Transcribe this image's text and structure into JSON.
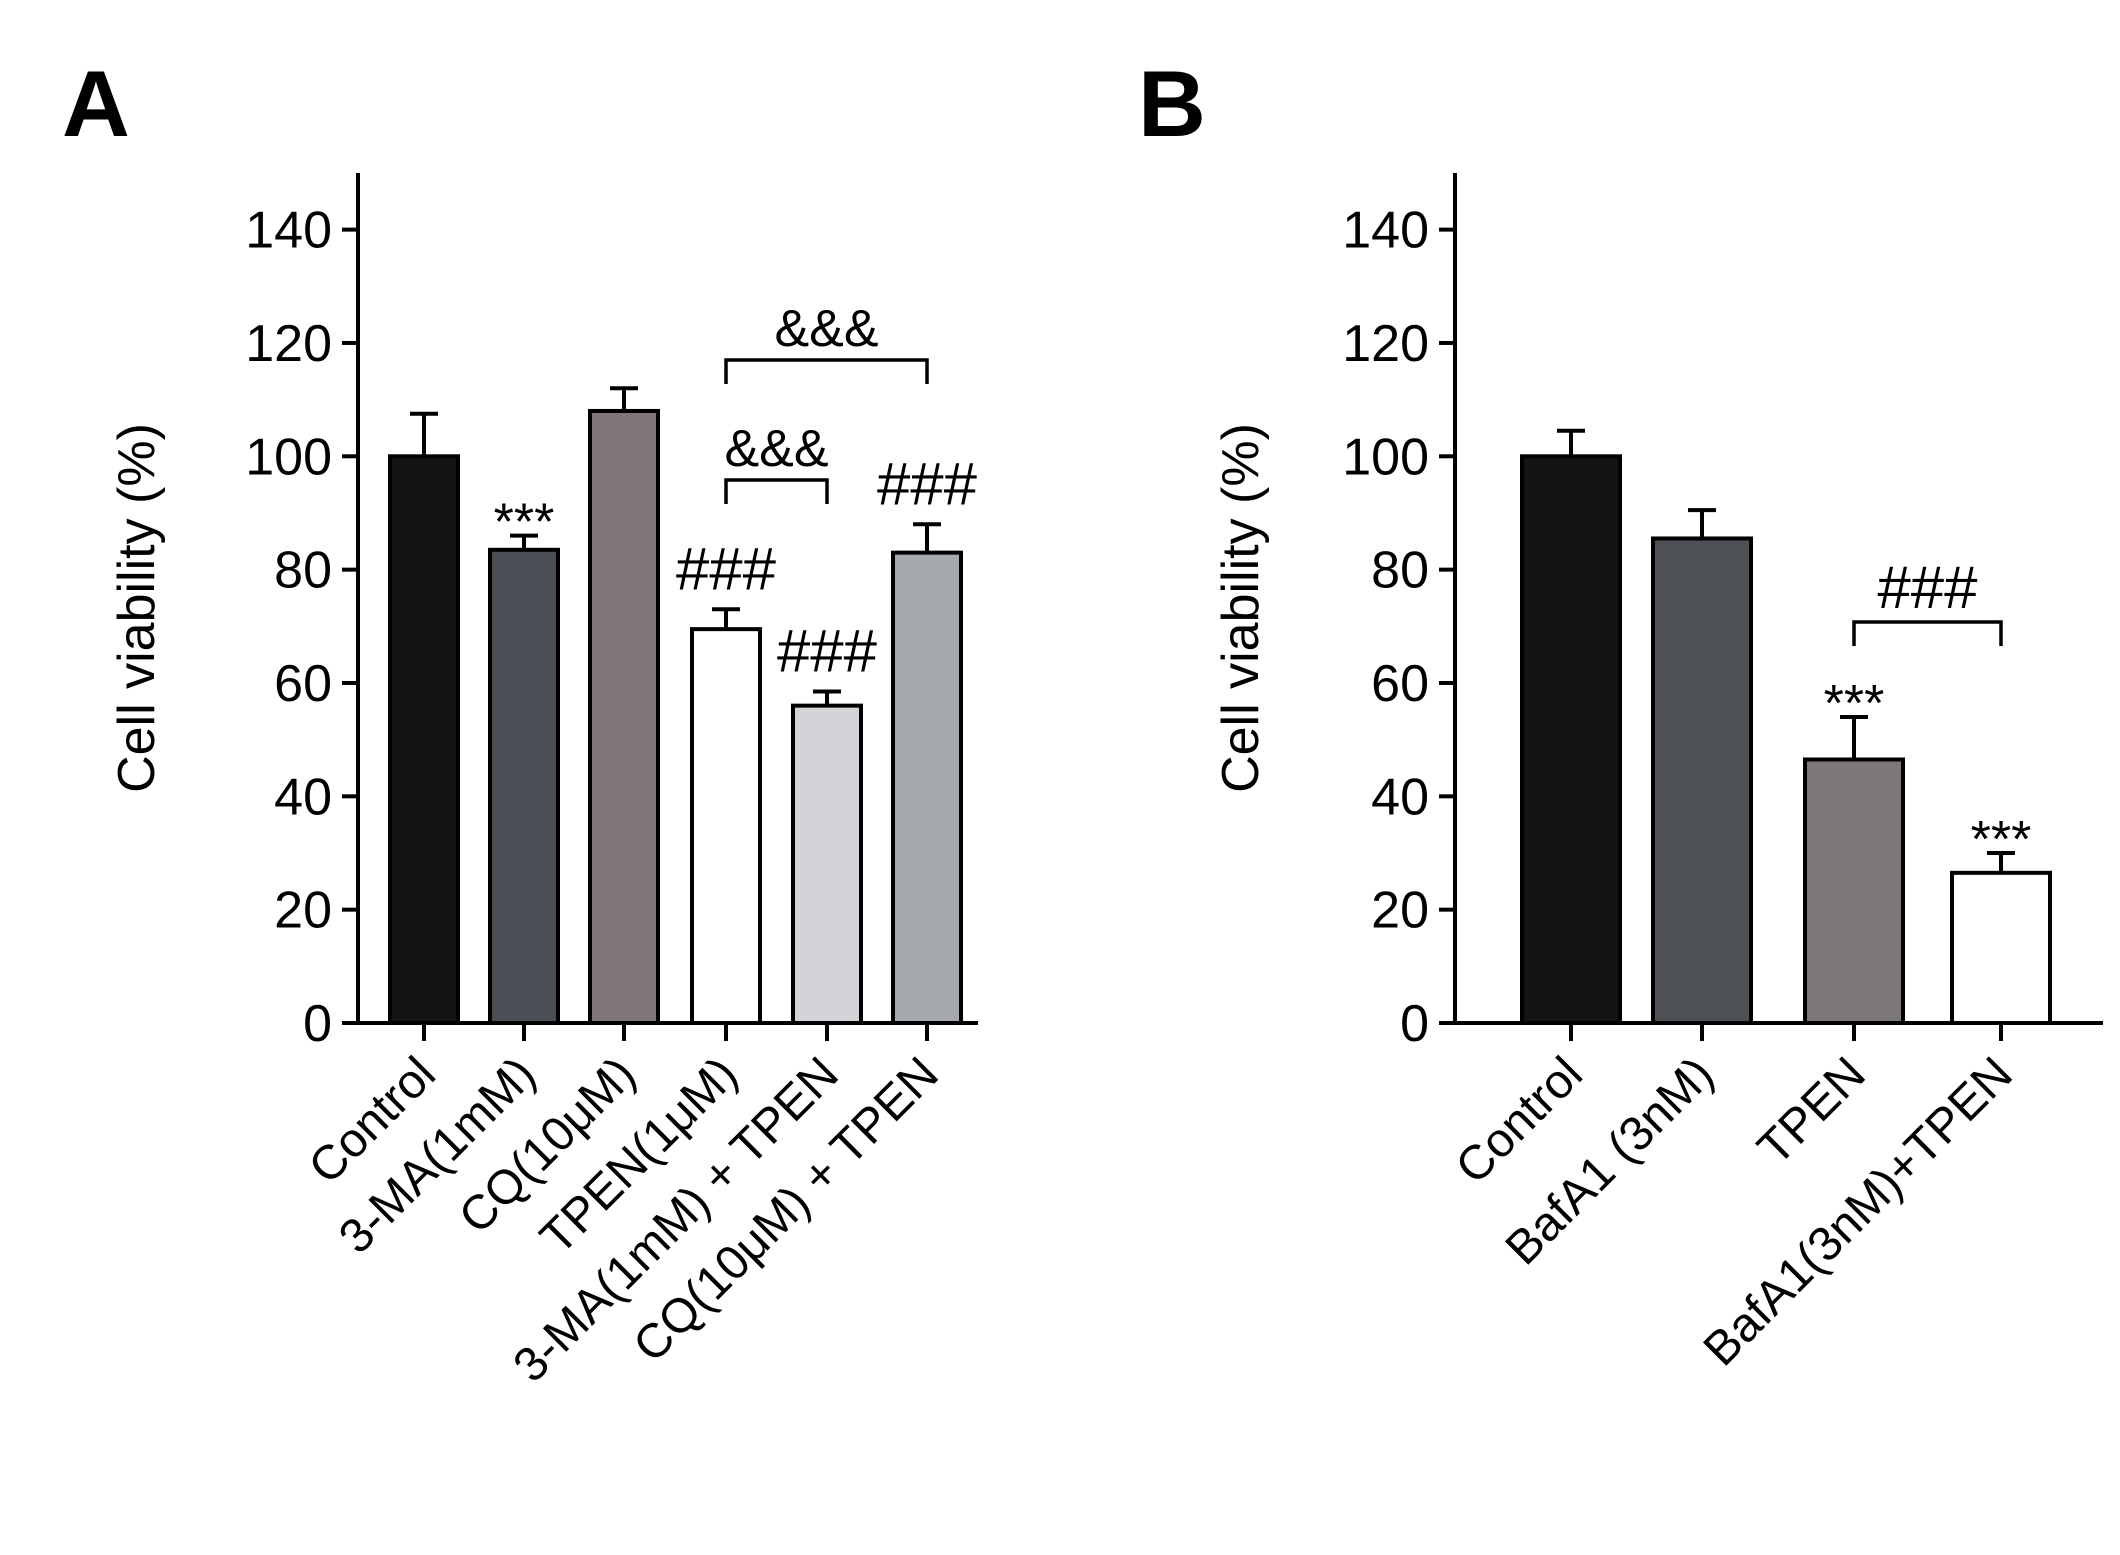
{
  "chart_data": [
    {
      "panel": "A",
      "type": "bar",
      "ylabel": "Cell viability (%)",
      "ylim": [
        0,
        150
      ],
      "yticks": [
        0,
        20,
        40,
        60,
        80,
        100,
        120,
        140
      ],
      "categories": [
        "Control",
        "3-MA(1mM)",
        "CQ(10μM)",
        "TPEN(1μM)",
        "3-MA(1mM) + TPEN",
        "CQ(10μM) + TPEN"
      ],
      "values": [
        100,
        83.5,
        108,
        69.5,
        56,
        83
      ],
      "errors": [
        7.5,
        2.5,
        4,
        3.5,
        2.5,
        5
      ],
      "colors": [
        "#141414",
        "#4a4f55",
        "#807878",
        "#ffffff",
        "#d4d4d8",
        "#a6aaae"
      ],
      "annotations": [
        {
          "category": 1,
          "text": "***"
        },
        {
          "category": 3,
          "text": "###"
        },
        {
          "category": 4,
          "text": "###"
        },
        {
          "category": 5,
          "text": "###"
        }
      ],
      "brackets": [
        {
          "from": 3,
          "to": 4,
          "text": "&&&"
        },
        {
          "from": 3,
          "to": 5,
          "text": "&&&"
        }
      ]
    },
    {
      "panel": "B",
      "type": "bar",
      "ylabel": "Cell viability (%)",
      "ylim": [
        0,
        150
      ],
      "yticks": [
        0,
        20,
        40,
        60,
        80,
        100,
        120,
        140
      ],
      "categories": [
        "Control",
        "BafA1 (3nM)",
        "TPEN",
        "BafA1(3nM)+TPEN"
      ],
      "values": [
        100,
        85.5,
        46.5,
        26.5
      ],
      "errors": [
        4.5,
        5,
        7.5,
        3.5
      ],
      "colors": [
        "#141414",
        "#4e5256",
        "#7c7878",
        "#ffffff"
      ],
      "annotations": [
        {
          "category": 2,
          "text": "***"
        },
        {
          "category": 3,
          "text": "***"
        }
      ],
      "brackets": [
        {
          "from": 2,
          "to": 3,
          "text": "###"
        }
      ]
    }
  ]
}
